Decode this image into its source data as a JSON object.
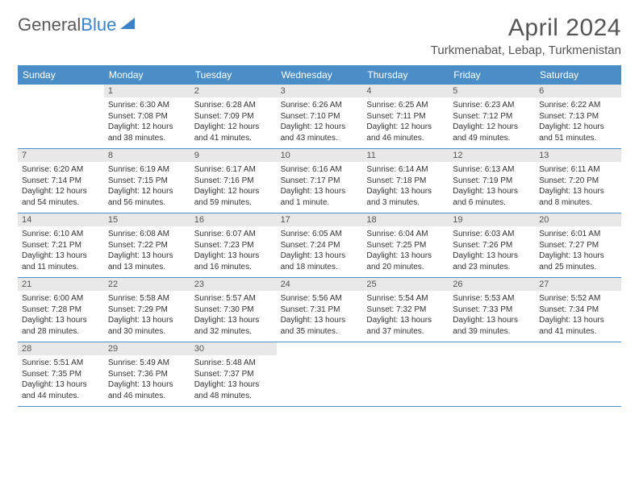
{
  "logo": {
    "text1": "General",
    "text2": "Blue"
  },
  "header": {
    "month_title": "April 2024",
    "location": "Turkmenabat, Lebap, Turkmenistan"
  },
  "weekdays": [
    "Sunday",
    "Monday",
    "Tuesday",
    "Wednesday",
    "Thursday",
    "Friday",
    "Saturday"
  ],
  "colors": {
    "header_blue": "#4a8dc7",
    "logo_blue": "#3b82c9",
    "text_gray": "#555555",
    "day_text": "#333333",
    "daynum_bg": "#e8e8e8"
  },
  "weeks": [
    [
      {
        "num": "",
        "sunrise": "",
        "sunset": "",
        "daylight": ""
      },
      {
        "num": "1",
        "sunrise": "Sunrise: 6:30 AM",
        "sunset": "Sunset: 7:08 PM",
        "daylight": "Daylight: 12 hours and 38 minutes."
      },
      {
        "num": "2",
        "sunrise": "Sunrise: 6:28 AM",
        "sunset": "Sunset: 7:09 PM",
        "daylight": "Daylight: 12 hours and 41 minutes."
      },
      {
        "num": "3",
        "sunrise": "Sunrise: 6:26 AM",
        "sunset": "Sunset: 7:10 PM",
        "daylight": "Daylight: 12 hours and 43 minutes."
      },
      {
        "num": "4",
        "sunrise": "Sunrise: 6:25 AM",
        "sunset": "Sunset: 7:11 PM",
        "daylight": "Daylight: 12 hours and 46 minutes."
      },
      {
        "num": "5",
        "sunrise": "Sunrise: 6:23 AM",
        "sunset": "Sunset: 7:12 PM",
        "daylight": "Daylight: 12 hours and 49 minutes."
      },
      {
        "num": "6",
        "sunrise": "Sunrise: 6:22 AM",
        "sunset": "Sunset: 7:13 PM",
        "daylight": "Daylight: 12 hours and 51 minutes."
      }
    ],
    [
      {
        "num": "7",
        "sunrise": "Sunrise: 6:20 AM",
        "sunset": "Sunset: 7:14 PM",
        "daylight": "Daylight: 12 hours and 54 minutes."
      },
      {
        "num": "8",
        "sunrise": "Sunrise: 6:19 AM",
        "sunset": "Sunset: 7:15 PM",
        "daylight": "Daylight: 12 hours and 56 minutes."
      },
      {
        "num": "9",
        "sunrise": "Sunrise: 6:17 AM",
        "sunset": "Sunset: 7:16 PM",
        "daylight": "Daylight: 12 hours and 59 minutes."
      },
      {
        "num": "10",
        "sunrise": "Sunrise: 6:16 AM",
        "sunset": "Sunset: 7:17 PM",
        "daylight": "Daylight: 13 hours and 1 minute."
      },
      {
        "num": "11",
        "sunrise": "Sunrise: 6:14 AM",
        "sunset": "Sunset: 7:18 PM",
        "daylight": "Daylight: 13 hours and 3 minutes."
      },
      {
        "num": "12",
        "sunrise": "Sunrise: 6:13 AM",
        "sunset": "Sunset: 7:19 PM",
        "daylight": "Daylight: 13 hours and 6 minutes."
      },
      {
        "num": "13",
        "sunrise": "Sunrise: 6:11 AM",
        "sunset": "Sunset: 7:20 PM",
        "daylight": "Daylight: 13 hours and 8 minutes."
      }
    ],
    [
      {
        "num": "14",
        "sunrise": "Sunrise: 6:10 AM",
        "sunset": "Sunset: 7:21 PM",
        "daylight": "Daylight: 13 hours and 11 minutes."
      },
      {
        "num": "15",
        "sunrise": "Sunrise: 6:08 AM",
        "sunset": "Sunset: 7:22 PM",
        "daylight": "Daylight: 13 hours and 13 minutes."
      },
      {
        "num": "16",
        "sunrise": "Sunrise: 6:07 AM",
        "sunset": "Sunset: 7:23 PM",
        "daylight": "Daylight: 13 hours and 16 minutes."
      },
      {
        "num": "17",
        "sunrise": "Sunrise: 6:05 AM",
        "sunset": "Sunset: 7:24 PM",
        "daylight": "Daylight: 13 hours and 18 minutes."
      },
      {
        "num": "18",
        "sunrise": "Sunrise: 6:04 AM",
        "sunset": "Sunset: 7:25 PM",
        "daylight": "Daylight: 13 hours and 20 minutes."
      },
      {
        "num": "19",
        "sunrise": "Sunrise: 6:03 AM",
        "sunset": "Sunset: 7:26 PM",
        "daylight": "Daylight: 13 hours and 23 minutes."
      },
      {
        "num": "20",
        "sunrise": "Sunrise: 6:01 AM",
        "sunset": "Sunset: 7:27 PM",
        "daylight": "Daylight: 13 hours and 25 minutes."
      }
    ],
    [
      {
        "num": "21",
        "sunrise": "Sunrise: 6:00 AM",
        "sunset": "Sunset: 7:28 PM",
        "daylight": "Daylight: 13 hours and 28 minutes."
      },
      {
        "num": "22",
        "sunrise": "Sunrise: 5:58 AM",
        "sunset": "Sunset: 7:29 PM",
        "daylight": "Daylight: 13 hours and 30 minutes."
      },
      {
        "num": "23",
        "sunrise": "Sunrise: 5:57 AM",
        "sunset": "Sunset: 7:30 PM",
        "daylight": "Daylight: 13 hours and 32 minutes."
      },
      {
        "num": "24",
        "sunrise": "Sunrise: 5:56 AM",
        "sunset": "Sunset: 7:31 PM",
        "daylight": "Daylight: 13 hours and 35 minutes."
      },
      {
        "num": "25",
        "sunrise": "Sunrise: 5:54 AM",
        "sunset": "Sunset: 7:32 PM",
        "daylight": "Daylight: 13 hours and 37 minutes."
      },
      {
        "num": "26",
        "sunrise": "Sunrise: 5:53 AM",
        "sunset": "Sunset: 7:33 PM",
        "daylight": "Daylight: 13 hours and 39 minutes."
      },
      {
        "num": "27",
        "sunrise": "Sunrise: 5:52 AM",
        "sunset": "Sunset: 7:34 PM",
        "daylight": "Daylight: 13 hours and 41 minutes."
      }
    ],
    [
      {
        "num": "28",
        "sunrise": "Sunrise: 5:51 AM",
        "sunset": "Sunset: 7:35 PM",
        "daylight": "Daylight: 13 hours and 44 minutes."
      },
      {
        "num": "29",
        "sunrise": "Sunrise: 5:49 AM",
        "sunset": "Sunset: 7:36 PM",
        "daylight": "Daylight: 13 hours and 46 minutes."
      },
      {
        "num": "30",
        "sunrise": "Sunrise: 5:48 AM",
        "sunset": "Sunset: 7:37 PM",
        "daylight": "Daylight: 13 hours and 48 minutes."
      },
      {
        "num": "",
        "sunrise": "",
        "sunset": "",
        "daylight": ""
      },
      {
        "num": "",
        "sunrise": "",
        "sunset": "",
        "daylight": ""
      },
      {
        "num": "",
        "sunrise": "",
        "sunset": "",
        "daylight": ""
      },
      {
        "num": "",
        "sunrise": "",
        "sunset": "",
        "daylight": ""
      }
    ]
  ]
}
